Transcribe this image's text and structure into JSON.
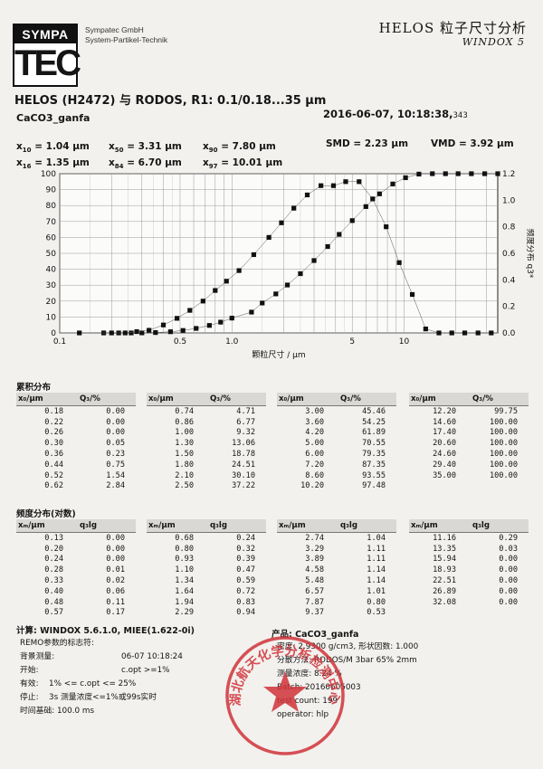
{
  "header": {
    "logo_top": "SYMPA",
    "logo_big": "TEC",
    "company_line1": "Sympatec GmbH",
    "company_line2": "System-Partikel-Technik",
    "brand": "HELOS 粒子尺寸分析",
    "software": "WINDOX 5",
    "title": "HELOS (H2472) 与 RODOS, R1: 0.1/0.18...35 µm",
    "sample": "CaCO3_ganfa",
    "datetime": "2016-06-07, 10:18:38,",
    "datetime_ms": "343"
  },
  "stats": {
    "x10": "= 1.04 µm",
    "x50": "= 3.31 µm",
    "x90": "= 7.80 µm",
    "x16": "= 1.35 µm",
    "x84": "= 6.70 µm",
    "x97": "= 10.01 µm",
    "smd": "SMD = 2.23 µm",
    "vmd": "VMD = 3.92 µm"
  },
  "chart_data": {
    "type": "scatter",
    "xlabel": "颗粒尺寸 / µm",
    "ylabel_left": "累积分布 Q3 / %",
    "ylabel_right": "频度分布 q3*",
    "x_scale": "log",
    "xlim": [
      0.1,
      35
    ],
    "ylim_left": [
      0,
      100
    ],
    "ylim_right": [
      0,
      1.2
    ],
    "x_ticks": [
      "0.1",
      "0.5",
      "1.0",
      "5",
      "10"
    ],
    "y_ticks_left": [
      "0",
      "10",
      "20",
      "30",
      "40",
      "50",
      "60",
      "70",
      "80",
      "90",
      "100"
    ],
    "y_ticks_right": [
      "0.0",
      "0.2",
      "0.4",
      "0.6",
      "0.8",
      "1.0",
      "1.2"
    ],
    "grid": true,
    "series": [
      {
        "x": [
          0.18,
          0.22,
          0.26,
          0.3,
          0.36,
          0.44,
          0.52,
          0.62,
          0.74,
          0.86,
          1.0,
          1.3,
          1.5,
          1.8,
          2.1,
          2.5,
          3.0,
          3.6,
          4.2,
          5.0,
          6.0,
          7.2,
          8.6,
          10.2,
          12.2,
          14.6,
          17.4,
          20.6,
          24.6,
          29.4,
          35.0
        ],
        "y": [
          0.0,
          0.0,
          0.0,
          0.05,
          0.23,
          0.75,
          1.54,
          2.84,
          4.71,
          6.77,
          9.32,
          13.06,
          18.78,
          24.51,
          30.1,
          37.22,
          45.46,
          54.25,
          61.89,
          70.55,
          79.35,
          87.35,
          93.55,
          97.48,
          99.75,
          100.0,
          100.0,
          100.0,
          100.0,
          100.0,
          100.0
        ]
      },
      {
        "x": [
          0.13,
          0.2,
          0.24,
          0.28,
          0.33,
          0.4,
          0.48,
          0.57,
          0.68,
          0.8,
          0.93,
          1.1,
          1.34,
          1.64,
          1.94,
          2.29,
          2.74,
          3.29,
          3.89,
          4.58,
          5.48,
          6.57,
          7.87,
          9.37,
          11.16,
          13.35,
          15.94,
          18.93,
          22.51,
          26.89,
          32.08
        ],
        "y": [
          0.0,
          0.0,
          0.0,
          0.01,
          0.02,
          0.06,
          0.11,
          0.17,
          0.24,
          0.32,
          0.39,
          0.47,
          0.59,
          0.72,
          0.83,
          0.94,
          1.04,
          1.11,
          1.11,
          1.14,
          1.14,
          1.01,
          0.8,
          0.53,
          0.29,
          0.03,
          0.0,
          0.0,
          0.0,
          0.0,
          0.0
        ]
      }
    ]
  },
  "cumulative": {
    "title": "累积分布",
    "col_x": "x₀/µm",
    "col_q": "Q₃/%",
    "groups": [
      [
        [
          "0.18",
          "0.00"
        ],
        [
          "0.22",
          "0.00"
        ],
        [
          "0.26",
          "0.00"
        ],
        [
          "0.30",
          "0.05"
        ],
        [
          "0.36",
          "0.23"
        ],
        [
          "0.44",
          "0.75"
        ],
        [
          "0.52",
          "1.54"
        ],
        [
          "0.62",
          "2.84"
        ]
      ],
      [
        [
          "0.74",
          "4.71"
        ],
        [
          "0.86",
          "6.77"
        ],
        [
          "1.00",
          "9.32"
        ],
        [
          "1.30",
          "13.06"
        ],
        [
          "1.50",
          "18.78"
        ],
        [
          "1.80",
          "24.51"
        ],
        [
          "2.10",
          "30.10"
        ],
        [
          "2.50",
          "37.22"
        ]
      ],
      [
        [
          "3.00",
          "45.46"
        ],
        [
          "3.60",
          "54.25"
        ],
        [
          "4.20",
          "61.89"
        ],
        [
          "5.00",
          "70.55"
        ],
        [
          "6.00",
          "79.35"
        ],
        [
          "7.20",
          "87.35"
        ],
        [
          "8.60",
          "93.55"
        ],
        [
          "10.20",
          "97.48"
        ]
      ],
      [
        [
          "12.20",
          "99.75"
        ],
        [
          "14.60",
          "100.00"
        ],
        [
          "17.40",
          "100.00"
        ],
        [
          "20.60",
          "100.00"
        ],
        [
          "24.60",
          "100.00"
        ],
        [
          "29.40",
          "100.00"
        ],
        [
          "35.00",
          "100.00"
        ]
      ]
    ]
  },
  "frequency": {
    "title": "频度分布(对数)",
    "col_x": "xₘ/µm",
    "col_q": "q₃lg",
    "groups": [
      [
        [
          "0.13",
          "0.00"
        ],
        [
          "0.20",
          "0.00"
        ],
        [
          "0.24",
          "0.00"
        ],
        [
          "0.28",
          "0.01"
        ],
        [
          "0.33",
          "0.02"
        ],
        [
          "0.40",
          "0.06"
        ],
        [
          "0.48",
          "0.11"
        ],
        [
          "0.57",
          "0.17"
        ]
      ],
      [
        [
          "0.68",
          "0.24"
        ],
        [
          "0.80",
          "0.32"
        ],
        [
          "0.93",
          "0.39"
        ],
        [
          "1.10",
          "0.47"
        ],
        [
          "1.34",
          "0.59"
        ],
        [
          "1.64",
          "0.72"
        ],
        [
          "1.94",
          "0.83"
        ],
        [
          "2.29",
          "0.94"
        ]
      ],
      [
        [
          "2.74",
          "1.04"
        ],
        [
          "3.29",
          "1.11"
        ],
        [
          "3.89",
          "1.11"
        ],
        [
          "4.58",
          "1.14"
        ],
        [
          "5.48",
          "1.14"
        ],
        [
          "6.57",
          "1.01"
        ],
        [
          "7.87",
          "0.80"
        ],
        [
          "9.37",
          "0.53"
        ]
      ],
      [
        [
          "11.16",
          "0.29"
        ],
        [
          "13.35",
          "0.03"
        ],
        [
          "15.94",
          "0.00"
        ],
        [
          "18.93",
          "0.00"
        ],
        [
          "22.51",
          "0.00"
        ],
        [
          "26.89",
          "0.00"
        ],
        [
          "32.08",
          "0.00"
        ]
      ]
    ]
  },
  "calc": {
    "title": "计算: WINDOX 5.6.1.0, MIEE(1.622-0i)",
    "remo": "REMO参数的标志符:",
    "bg_label": "背景测量:",
    "bg_value": "06-07 10:18:24",
    "start_label": "开始:",
    "start_value": "c.opt >=1%",
    "valid_label": "有效:",
    "valid_value": "1% <= c.opt <= 25%",
    "stop_label": "停止:",
    "stop_value": "3s 测量浓度<=1%或99s实时",
    "time_label": "时间基础: 100.0 ms"
  },
  "product": {
    "title": "产品: CaCO3_ganfa",
    "density": "密度: 2.9300 g/cm3, 形状因数: 1.000",
    "disperse": "分散方法: RODOS/M 3bar 65% 2mm",
    "conc": "测量浓度: 8.24 %",
    "batch": "Batch: 20160605003",
    "test": "test count: 199",
    "operator": "operator: hlp"
  },
  "stamp": {
    "text": "湖北航天化学分析检测中心",
    "bottom": "分析检测中心",
    "color": "#d03238"
  }
}
